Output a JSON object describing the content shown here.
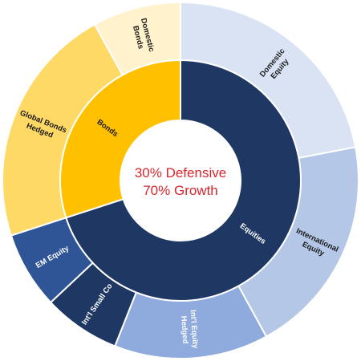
{
  "chart_data": {
    "type": "sunburst",
    "center_text": [
      "30% Defensive",
      "70% Growth"
    ],
    "center_color": "#d8262d",
    "inner": [
      {
        "name": "Equities",
        "value": 70,
        "color": "#1f3763",
        "label_color": "#ffffff"
      },
      {
        "name": "Bonds",
        "value": 30,
        "color": "#ffc000",
        "label_color": "#1a1a1a"
      }
    ],
    "outer": [
      {
        "name": "Domestic Equity",
        "label_lines": [
          "Domestic",
          "Equity"
        ],
        "value": 22,
        "color": "#dae3f3",
        "label_color": "#1a1a1a"
      },
      {
        "name": "International Equity",
        "label_lines": [
          "International",
          "Equity"
        ],
        "value": 20,
        "color": "#b4c7e7",
        "label_color": "#1a1a1a"
      },
      {
        "name": "Int'l Equity Hedged",
        "label_lines": [
          "Int'l Equity",
          "Hedged"
        ],
        "value": 14,
        "color": "#8faadc",
        "label_color": "#ffffff"
      },
      {
        "name": "Int'l Small Co",
        "label_lines": [
          "Int'l Small Co"
        ],
        "value": 7,
        "color": "#1f3763",
        "label_color": "#ffffff"
      },
      {
        "name": "EM Equity",
        "label_lines": [
          "EM Equity"
        ],
        "value": 7,
        "color": "#2f5597",
        "label_color": "#ffffff"
      },
      {
        "name": "Global Bonds Hedged",
        "label_lines": [
          "Global Bonds",
          "Hedged"
        ],
        "value": 22,
        "color": "#ffd966",
        "label_color": "#1a1a1a"
      },
      {
        "name": "Domestic Bonds",
        "label_lines": [
          "Domestic",
          "Bonds"
        ],
        "value": 8,
        "color": "#fff2cc",
        "label_color": "#1a1a1a"
      }
    ]
  }
}
